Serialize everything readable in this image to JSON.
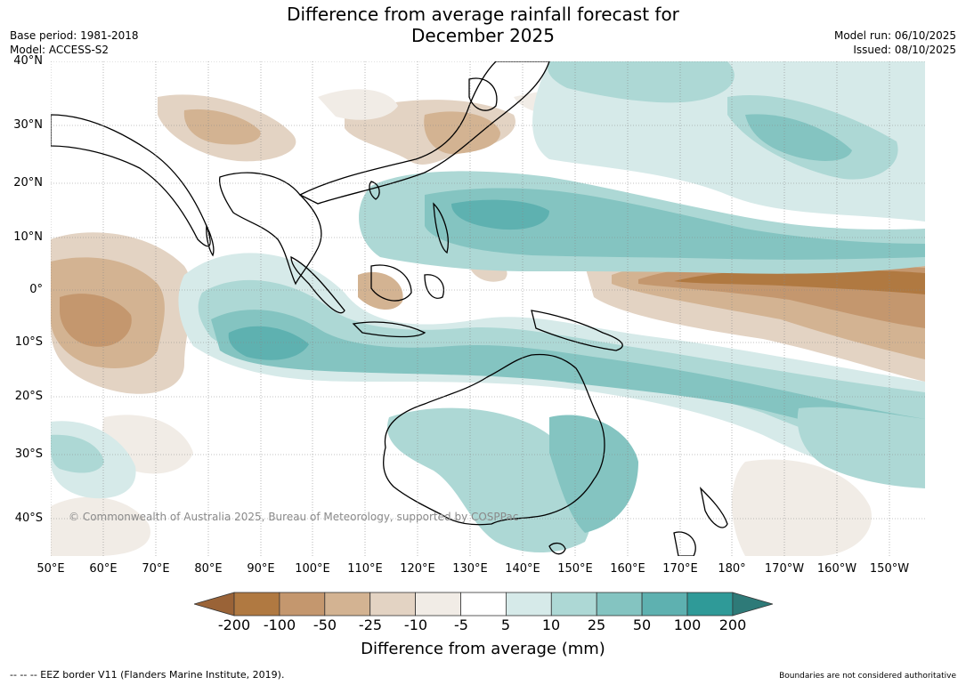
{
  "title_line1": "Difference from average rainfall forecast for",
  "title_line2": "December 2025",
  "meta_left": {
    "base_period": "Base period: 1981-2018",
    "model": "Model: ACCESS-S2"
  },
  "meta_right": {
    "model_run": "Model run: 06/10/2025",
    "issued": "Issued: 08/10/2025"
  },
  "lat_labels": [
    "40°N",
    "30°N",
    "20°N",
    "10°N",
    "0°",
    "10°S",
    "20°S",
    "30°S",
    "40°S"
  ],
  "lon_labels": [
    "50°E",
    "60°E",
    "70°E",
    "80°E",
    "90°E",
    "100°E",
    "110°E",
    "120°E",
    "130°E",
    "140°E",
    "150°E",
    "160°E",
    "170°E",
    "180°",
    "170°W",
    "160°W",
    "150°W"
  ],
  "copyright": "© Commonwealth of Australia 2025, Bureau of Meteorology, supported by COSPPac",
  "colorbar": {
    "ticks": [
      "-200",
      "-100",
      "-50",
      "-25",
      "-10",
      "-5",
      "5",
      "10",
      "25",
      "50",
      "100",
      "200"
    ],
    "colors": [
      "#9a6337",
      "#b07941",
      "#c4976e",
      "#d3b392",
      "#e3d3c3",
      "#f1ece6",
      "#ffffff",
      "#d6eae9",
      "#add8d5",
      "#84c4c1",
      "#5eb1b0",
      "#2f9a98",
      "#2e7a78"
    ],
    "title": "Difference from average (mm)"
  },
  "footer_left": "--  --  -- EEZ border V11 (Flanders Marine Institute, 2019).",
  "footer_right": "Boundaries are not considered authoritative"
}
